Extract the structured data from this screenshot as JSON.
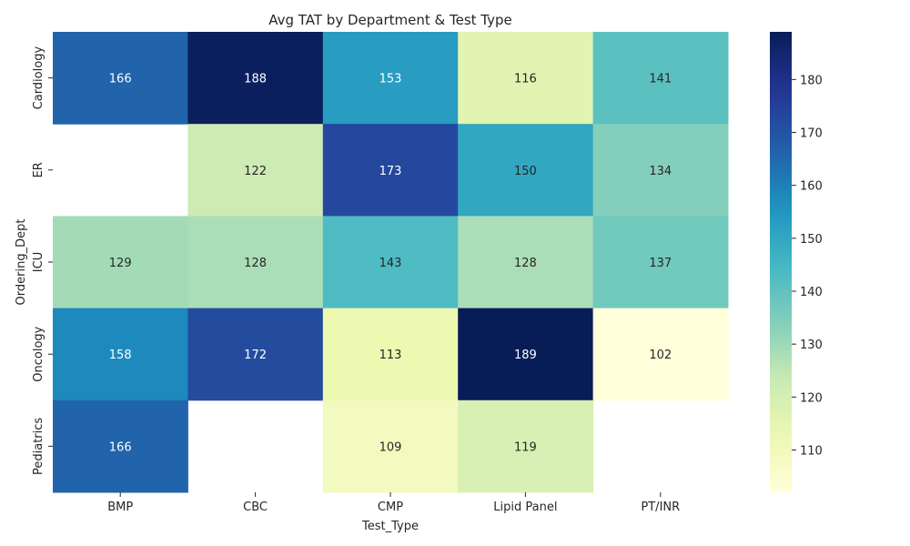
{
  "chart_data": {
    "type": "heatmap",
    "title": "Avg TAT by Department & Test Type",
    "xlabel": "Test_Type",
    "ylabel": "Ordering_Dept",
    "x_categories": [
      "BMP",
      "CBC",
      "CMP",
      "Lipid Panel",
      "PT/INR"
    ],
    "y_categories": [
      "Cardiology",
      "ER",
      "ICU",
      "Oncology",
      "Pediatrics"
    ],
    "values": [
      [
        166,
        188,
        153,
        116,
        141
      ],
      [
        null,
        122,
        173,
        150,
        134
      ],
      [
        129,
        128,
        143,
        128,
        137
      ],
      [
        158,
        172,
        113,
        189,
        102
      ],
      [
        166,
        null,
        109,
        119,
        null
      ]
    ],
    "colormap": "YlGnBu",
    "colorbar": {
      "min": 102,
      "max": 189,
      "ticks": [
        110,
        120,
        130,
        140,
        150,
        160,
        170,
        180
      ]
    }
  }
}
